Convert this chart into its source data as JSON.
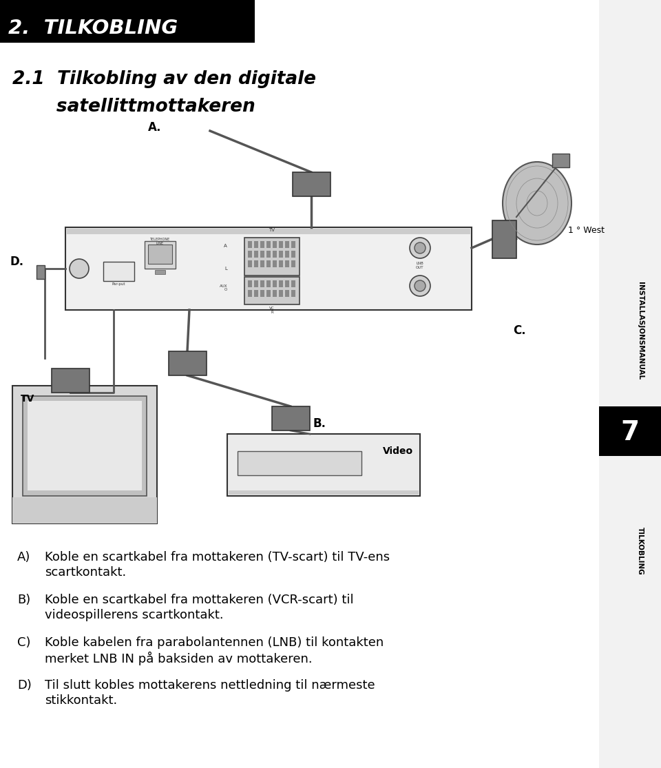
{
  "background_color": "#ffffff",
  "header_bg": "#000000",
  "header_text": "2.  TILKOBLING",
  "header_text_color": "#ffffff",
  "header_font_size": 21,
  "section_title_line1": "2.1  Tilkobling av den digitale",
  "section_title_line2": "       satellittmottakeren",
  "section_title_font_size": 19,
  "sidebar_text": "INSTALLASJONSMANUAL",
  "sidebar_number": "7",
  "sidebar_bottom_text": "TILKOBLING",
  "body_items": [
    {
      "label": "A)",
      "lines": [
        "Koble en scartkabel fra mottakeren (TV-scart) til TV-ens",
        "scartkontakt."
      ]
    },
    {
      "label": "B)",
      "lines": [
        "Koble en scartkabel fra mottakeren (VCR-scart) til",
        "videospillerens scartkontakt."
      ]
    },
    {
      "label": "C)",
      "lines": [
        "Koble kabelen fra parabolantennen (LNB) til kontakten",
        "merket LNB IN på baksiden av mottakeren."
      ]
    },
    {
      "label": "D)",
      "lines": [
        "Til slutt kobles mottakerens nettledning til nærmeste",
        "stikkontakt."
      ]
    }
  ],
  "body_font_size": 13,
  "diagram_label_A": "A.",
  "diagram_label_B": "B.",
  "diagram_label_C": "C.",
  "diagram_label_D": "D.",
  "diagram_label_TV": "TV",
  "diagram_label_Video": "Video",
  "diagram_label_1west": "1 ° West"
}
